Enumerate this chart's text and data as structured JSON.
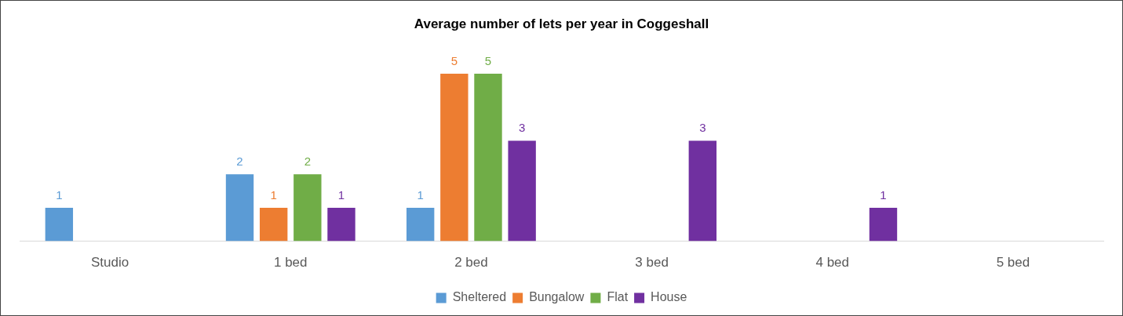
{
  "chart_data": {
    "type": "bar",
    "title": "Average number of lets per year in Coggeshall",
    "categories": [
      "Studio",
      "1 bed",
      "2 bed",
      "3 bed",
      "4 bed",
      "5 bed"
    ],
    "series": [
      {
        "name": "Sheltered",
        "color": "#5b9bd5",
        "values": [
          1,
          2,
          1,
          null,
          null,
          null
        ]
      },
      {
        "name": "Bungalow",
        "color": "#ed7d31",
        "values": [
          null,
          1,
          5,
          null,
          null,
          null
        ]
      },
      {
        "name": "Flat",
        "color": "#70ad47",
        "values": [
          null,
          2,
          5,
          null,
          null,
          null
        ]
      },
      {
        "name": "House",
        "color": "#7030a0",
        "values": [
          null,
          1,
          3,
          3,
          1,
          null
        ]
      }
    ],
    "data_labels": true,
    "grid": false,
    "legend": "bottom"
  }
}
